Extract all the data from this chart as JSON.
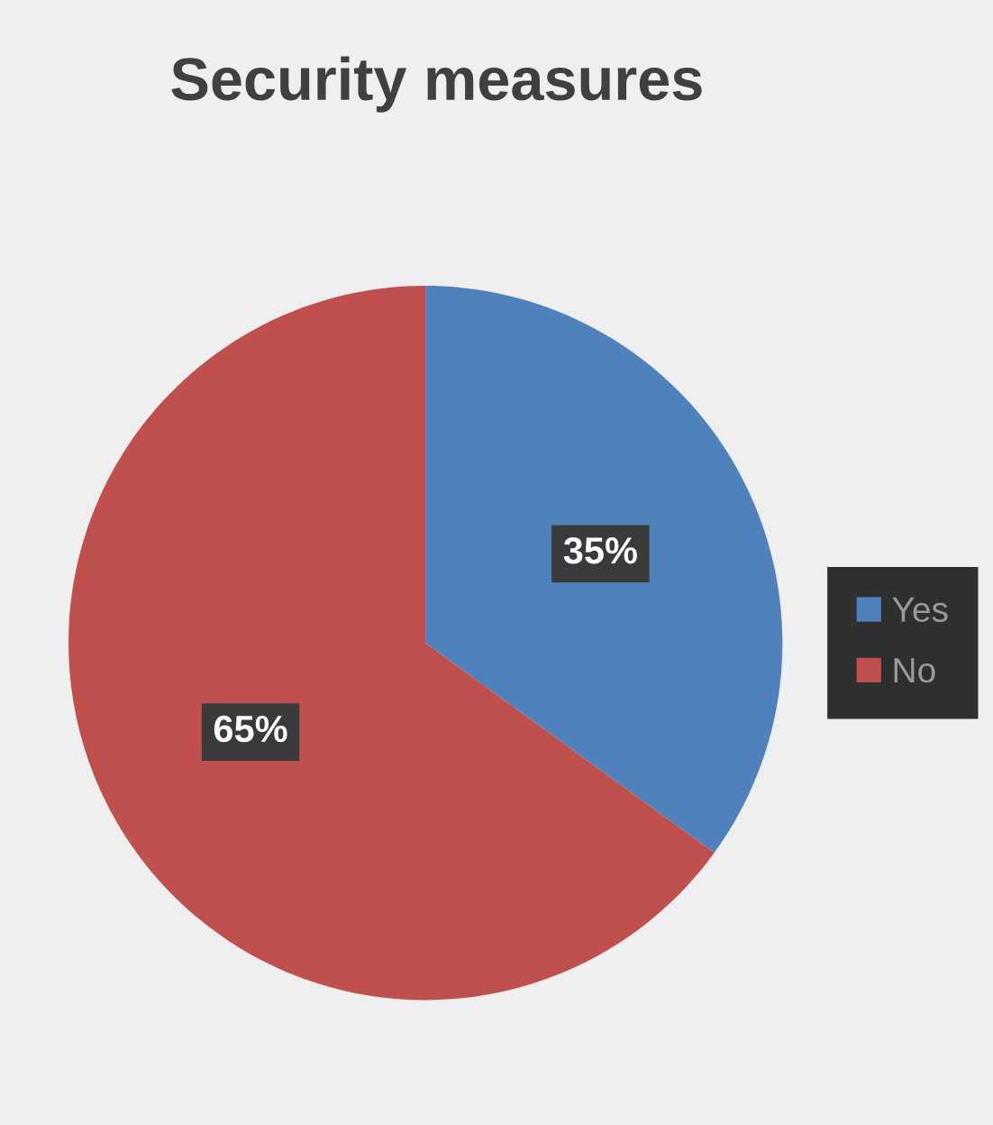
{
  "chart_data": {
    "type": "pie",
    "title": "Security measures",
    "categories": [
      "Yes",
      "No"
    ],
    "values": [
      35,
      65
    ],
    "colors": [
      "#4f81bd",
      "#c0504d"
    ],
    "value_labels": [
      "35%",
      "65%"
    ],
    "legend": "right"
  }
}
